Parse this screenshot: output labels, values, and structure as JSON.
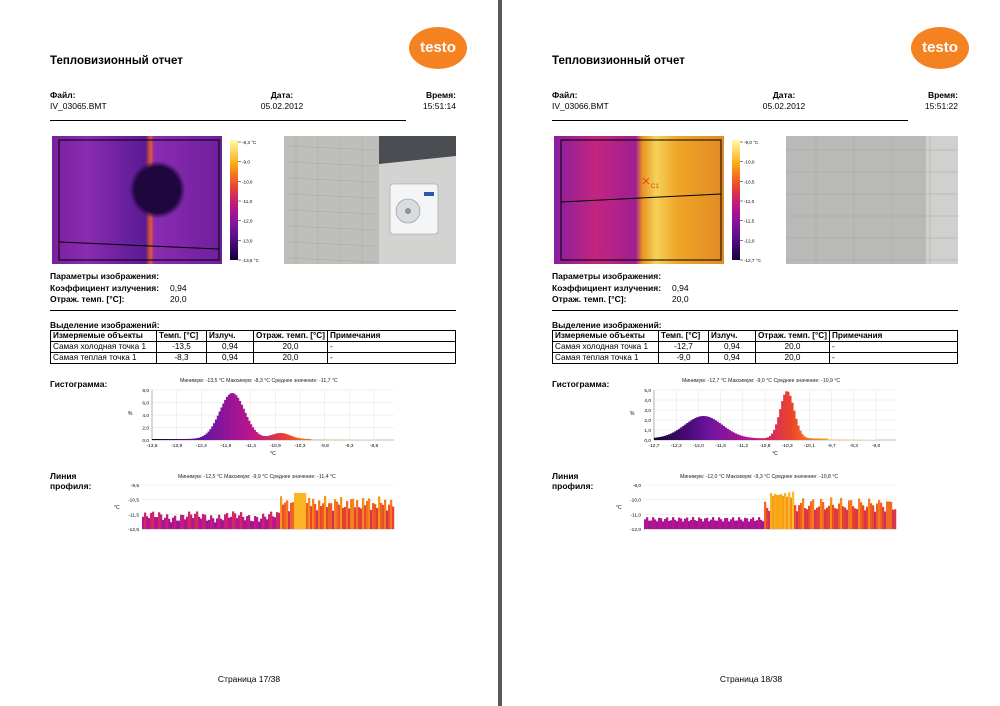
{
  "pages": [
    {
      "title": "Тепловизионный отчет",
      "logo_text": "testo",
      "file_label": "Файл:",
      "file_value": "IV_03065.BMT",
      "date_label": "Дата:",
      "date_value": "05.02.2012",
      "time_label": "Время:",
      "time_value": "15:51:14",
      "scale_labels": [
        "-8,3 °C",
        "-9,0",
        "-10,0",
        "-11,0",
        "-12,0",
        "-13,0",
        "-13,5 °C"
      ],
      "params": {
        "heading": "Параметры изображения:",
        "emissivity_label": "Коэффициент излучения:",
        "emissivity_value": "0,94",
        "refl_label": "Отраж. темп. [°C]:",
        "refl_value": "20,0"
      },
      "selection_heading": "Выделение изображений:",
      "table": {
        "headers": [
          "Измеряемые объекты",
          "Темп. [°C]",
          "Излуч.",
          "Отраж. темп. [°C]",
          "Примечания"
        ],
        "rows": [
          [
            "Самая холодная точка 1",
            "-13,5",
            "0,94",
            "20,0",
            "-"
          ],
          [
            "Самая теплая точка 1",
            "-8,3",
            "0,94",
            "20,0",
            "-"
          ]
        ]
      },
      "histogram": {
        "label": "Гистограмма:",
        "stats": "Минимум: -13,5 °C Максимум: -8,3 °C Среднее значение: -11,7 °C",
        "y_unit": "%",
        "x_unit": "°C",
        "y_ticks": [
          "8,0",
          "6,0",
          "4,0",
          "2,0",
          "0,0"
        ],
        "x_ticks": [
          "-13,5",
          "-12,9",
          "-12,4",
          "-11,9",
          "-11,4",
          "-10,9",
          "-10,3",
          "-9,8",
          "-9,3",
          "-8,8"
        ]
      },
      "profile": {
        "label_line1": "Линия",
        "label_line2": "профиля:",
        "stats": "Минимум: -12,5 °C Максимум: -9,9 °C Среднее значение: -11,4 °C",
        "y_unit": "°C",
        "y_ticks": [
          "-9,5",
          "-10,5",
          "-11,5",
          "-12,5"
        ]
      },
      "footer": "Страница 17/38"
    },
    {
      "title": "Тепловизионный отчет",
      "logo_text": "testo",
      "file_label": "Файл:",
      "file_value": "IV_03066.BMT",
      "date_label": "Дата:",
      "date_value": "05.02.2012",
      "time_label": "Время:",
      "time_value": "15:51:22",
      "scale_labels": [
        "-9,0 °C",
        "-10,0",
        "-10,5",
        "-11,0",
        "-11,5",
        "-12,0",
        "-12,7 °C"
      ],
      "cursor_label": "C1",
      "params": {
        "heading": "Параметры изображения:",
        "emissivity_label": "Коэффициент излучения:",
        "emissivity_value": "0,94",
        "refl_label": "Отраж. темп. [°C]:",
        "refl_value": "20,0"
      },
      "selection_heading": "Выделение изображений:",
      "table": {
        "headers": [
          "Измеряемые объекты",
          "Темп. [°C]",
          "Излуч.",
          "Отраж. темп. [°C]",
          "Примечания"
        ],
        "rows": [
          [
            "Самая холодная точка 1",
            "-12,7",
            "0,94",
            "20,0",
            "-"
          ],
          [
            "Самая теплая точка 1",
            "-9,0",
            "0,94",
            "20,0",
            "-"
          ]
        ]
      },
      "histogram": {
        "label": "Гистограмма:",
        "stats": "Минимум: -12,7 °C Максимум: -9,0 °C Среднее значение: -10,9 °C",
        "y_unit": "%",
        "x_unit": "°C",
        "y_ticks": [
          "5,0",
          "4,0",
          "3,0",
          "2,0",
          "1,0",
          "0,0"
        ],
        "x_ticks": [
          "-12,7",
          "-12,3",
          "-12,0",
          "-11,6",
          "-11,2",
          "-10,8",
          "-10,3",
          "-10,1",
          "-9,7",
          "-9,3",
          "-9,0"
        ]
      },
      "profile": {
        "label_line1": "Линия",
        "label_line2": "профиля:",
        "stats": "Минимум: -12,0 °C Максимум: -9,3 °C Среднее значение: -10,8 °C",
        "y_unit": "°C",
        "y_ticks": [
          "-9,0",
          "-10,0",
          "-11,0",
          "-12,0"
        ]
      },
      "footer": "Страница 18/38"
    }
  ]
}
